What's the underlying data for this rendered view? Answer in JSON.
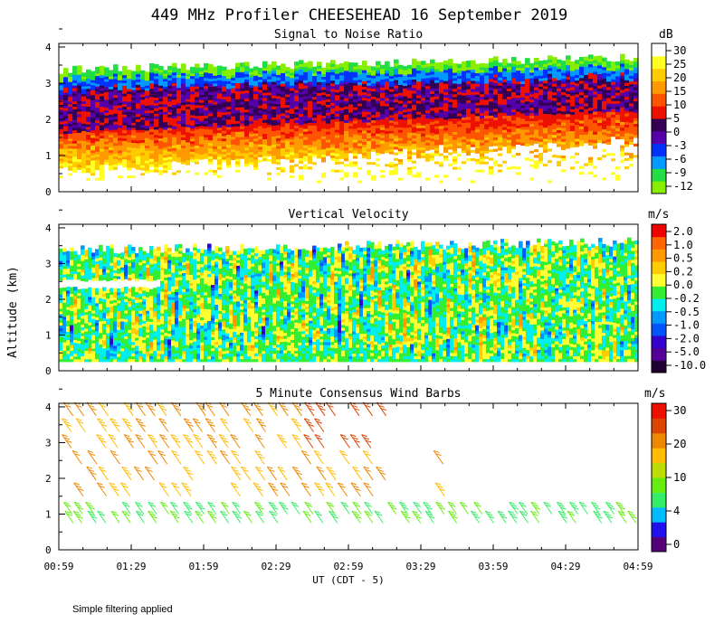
{
  "figure": {
    "title": "449 MHz Profiler CHEESEHEAD 16 September 2019",
    "y_axis_label": "Altitude (km)",
    "x_axis_label": "UT  (CDT - 5)",
    "footnote": "Simple filtering applied"
  },
  "colors": {
    "snr": [
      "#88ee00",
      "#22dd44",
      "#0099ff",
      "#0033ff",
      "#5500aa",
      "#330055",
      "#ee1100",
      "#ff5500",
      "#ff9900",
      "#ffcc00",
      "#ffff22",
      "#ffffff"
    ],
    "vv": [
      "#220033",
      "#550099",
      "#3300cc",
      "#0055ff",
      "#0099ff",
      "#00eeee",
      "#33ee33",
      "#ffff33",
      "#ffcc00",
      "#ff9900",
      "#ff6600",
      "#ee0000"
    ],
    "wind": [
      "#550077",
      "#2211ee",
      "#00bbff",
      "#33ee66",
      "#66ee11",
      "#bbdd00",
      "#ffbb00",
      "#ee8800",
      "#dd4400",
      "#ee1100"
    ]
  },
  "chart_data": [
    {
      "type": "heatmap",
      "title": "Signal to Noise Ratio",
      "units": "dB",
      "ylim": [
        0,
        4
      ],
      "x_tick_labels": [
        "00:59",
        "01:29",
        "01:59",
        "02:29",
        "02:59",
        "03:29",
        "03:59",
        "04:29",
        "04:59"
      ],
      "y_tick_labels": [
        "0",
        "1",
        "2",
        "3",
        "4"
      ],
      "colorbar_labels": [
        "30",
        "25",
        "20",
        "15",
        "10",
        "5",
        "0",
        "-3",
        "-6",
        "-9",
        "-12"
      ]
    },
    {
      "type": "heatmap",
      "title": "Vertical Velocity",
      "units": "m/s",
      "ylim": [
        0,
        4
      ],
      "x_tick_labels": [
        "00:59",
        "01:29",
        "01:59",
        "02:29",
        "02:59",
        "03:29",
        "03:59",
        "04:29",
        "04:59"
      ],
      "y_tick_labels": [
        "0",
        "1",
        "2",
        "3",
        "4"
      ],
      "colorbar_labels": [
        "2.0",
        "1.0",
        "0.5",
        "0.2",
        "0.0",
        "-0.2",
        "-0.5",
        "-1.0",
        "-2.0",
        "-5.0",
        "-10.0"
      ]
    },
    {
      "type": "scatter",
      "title": "5 Minute Consensus Wind Barbs",
      "units": "m/s",
      "ylim": [
        0,
        4
      ],
      "x_tick_labels": [
        "00:59",
        "01:29",
        "01:59",
        "02:29",
        "02:59",
        "03:29",
        "03:59",
        "04:29",
        "04:59"
      ],
      "y_tick_labels": [
        "0",
        "1",
        "2",
        "3",
        "4"
      ],
      "colorbar_labels": [
        "30",
        "20",
        "10",
        "4",
        "0"
      ]
    }
  ]
}
